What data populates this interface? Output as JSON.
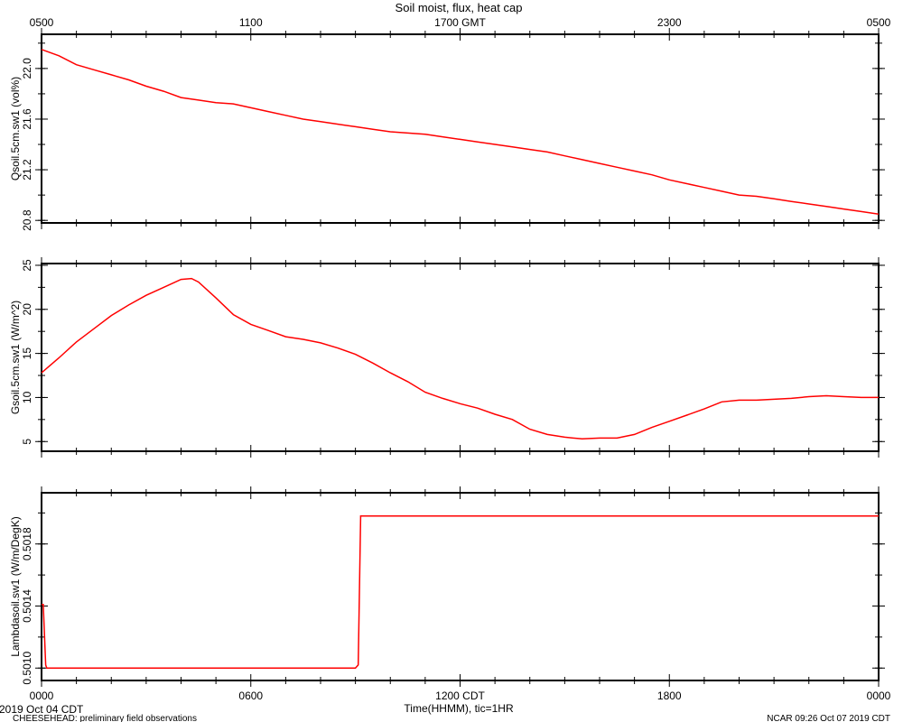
{
  "title": "Soil moist, flux, heat cap",
  "top_axis": {
    "labels": [
      "0500",
      "1100",
      "1700 GMT",
      "2300",
      "0500"
    ],
    "label_hours": [
      0,
      6,
      12,
      18,
      24
    ]
  },
  "bottom_axis": {
    "labels": [
      "0000",
      "0600",
      "1200 CDT",
      "1800",
      "0000"
    ],
    "label_hours": [
      0,
      6,
      12,
      18,
      24
    ],
    "xlabel": "Time(HHMM), tic=1HR"
  },
  "footer": {
    "date": "2019 Oct 04 CDT",
    "project": "CHEESEHEAD: preliminary field observations",
    "stamp": "NCAR 09:26 Oct 07 2019 CDT"
  },
  "colors": {
    "series": "#ff0000"
  },
  "chart_data": [
    {
      "type": "line",
      "ylabel": "Qsoil.5cm.sw1 (vol%)",
      "xlim": [
        0,
        24
      ],
      "ylim": [
        20.78,
        22.27
      ],
      "yticks": [
        "20.8",
        "21.2",
        "21.6",
        "22.0"
      ],
      "ytick_values": [
        20.8,
        21.2,
        21.6,
        22.0
      ],
      "series": [
        {
          "x": [
            0,
            0.5,
            1,
            1.5,
            2,
            2.5,
            3,
            3.5,
            4,
            4.5,
            5,
            5.5,
            6,
            6.5,
            7,
            7.5,
            8,
            8.5,
            9,
            9.5,
            10,
            10.5,
            11,
            11.5,
            12,
            12.5,
            13,
            13.5,
            14,
            14.5,
            15,
            15.5,
            16,
            16.5,
            17,
            17.5,
            18,
            18.5,
            19,
            19.5,
            20,
            20.5,
            21,
            21.5,
            22,
            22.5,
            23,
            23.5,
            24
          ],
          "y": [
            22.15,
            22.1,
            22.03,
            21.99,
            21.95,
            21.91,
            21.86,
            21.82,
            21.77,
            21.75,
            21.73,
            21.72,
            21.69,
            21.66,
            21.63,
            21.6,
            21.58,
            21.56,
            21.54,
            21.52,
            21.5,
            21.49,
            21.48,
            21.46,
            21.44,
            21.42,
            21.4,
            21.38,
            21.36,
            21.34,
            21.31,
            21.28,
            21.25,
            21.22,
            21.19,
            21.16,
            21.12,
            21.09,
            21.06,
            21.03,
            21.0,
            20.99,
            20.97,
            20.95,
            20.93,
            20.91,
            20.89,
            20.87,
            20.85
          ]
        }
      ]
    },
    {
      "type": "line",
      "ylabel": "Gsoil.5cm.sw1 (W/m^2)",
      "xlim": [
        0,
        24
      ],
      "ylim": [
        3.9,
        25.2
      ],
      "yticks": [
        "5",
        "10",
        "15",
        "20",
        "25"
      ],
      "ytick_values": [
        5,
        10,
        15,
        20,
        25
      ],
      "series": [
        {
          "x": [
            0,
            0.5,
            1,
            1.5,
            2,
            2.5,
            3,
            3.5,
            4,
            4.3,
            4.5,
            5,
            5.5,
            6,
            6.5,
            7,
            7.5,
            8,
            8.5,
            9,
            9.5,
            10,
            10.5,
            11,
            11.5,
            12,
            12.5,
            13,
            13.5,
            14,
            14.5,
            15,
            15.5,
            16,
            16.5,
            17,
            17.5,
            18,
            18.5,
            19,
            19.5,
            20,
            20.5,
            21,
            21.5,
            22,
            22.5,
            23,
            23.5,
            24
          ],
          "y": [
            12.8,
            14.5,
            16.3,
            17.8,
            19.3,
            20.5,
            21.6,
            22.5,
            23.4,
            23.5,
            23.1,
            21.3,
            19.4,
            18.3,
            17.6,
            16.9,
            16.6,
            16.2,
            15.6,
            14.9,
            13.9,
            12.8,
            11.8,
            10.6,
            9.9,
            9.3,
            8.8,
            8.1,
            7.5,
            6.4,
            5.8,
            5.5,
            5.3,
            5.4,
            5.4,
            5.8,
            6.6,
            7.3,
            8.0,
            8.7,
            9.5,
            9.7,
            9.7,
            9.8,
            9.9,
            10.1,
            10.2,
            10.1,
            10.0,
            10.0
          ]
        }
      ]
    },
    {
      "type": "line",
      "ylabel": "Lambdasoil.sw1 (W/m/DegK)",
      "xlim": [
        0,
        24
      ],
      "ylim": [
        0.50092,
        0.50213
      ],
      "yticks": [
        "0.5010",
        "0.5014",
        "0.5018"
      ],
      "ytick_values": [
        0.501,
        0.5014,
        0.5018
      ],
      "series": [
        {
          "x": [
            0,
            0.05,
            0.12,
            0.15,
            9.0,
            9.08,
            9.15,
            9.2,
            24
          ],
          "y": [
            0.50141,
            0.50141,
            0.50102,
            0.501,
            0.501,
            0.50102,
            0.50198,
            0.50198,
            0.50198
          ]
        }
      ]
    }
  ]
}
